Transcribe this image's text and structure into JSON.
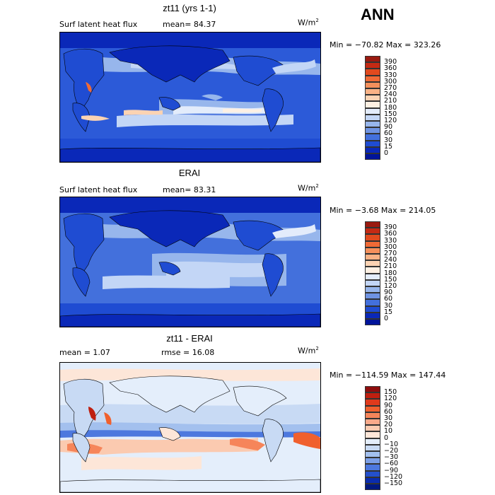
{
  "season": "ANN",
  "panels": [
    {
      "title": "zt11 (yrs 1-1)",
      "left_label": "Surf latent heat flux",
      "mean_text": "mean=  84.37",
      "units": "W/m",
      "units_sup": "2",
      "minmax": "Min = −70.82 Max = 323.26",
      "levels": [
        "390",
        "360",
        "330",
        "300",
        "270",
        "240",
        "210",
        "180",
        "150",
        "120",
        "90",
        "60",
        "30",
        "15",
        "0"
      ],
      "colors": [
        "#9a1a10",
        "#c42a14",
        "#e14a1e",
        "#f06a36",
        "#f5905c",
        "#f9b286",
        "#fbd3b3",
        "#fdf0e3",
        "#e3ecfb",
        "#c3d6f6",
        "#97b6ec",
        "#6f93e2",
        "#4370dc",
        "#1f4cd2",
        "#0a28b8",
        "#00149a"
      ]
    },
    {
      "title": "ERAI",
      "left_label": "Surf latent heat flux",
      "mean_text": "mean=  83.31",
      "units": "W/m",
      "units_sup": "2",
      "minmax": "Min =  −3.68 Max = 214.05",
      "levels": [
        "390",
        "360",
        "330",
        "300",
        "270",
        "240",
        "210",
        "180",
        "150",
        "120",
        "90",
        "60",
        "30",
        "15",
        "0"
      ],
      "colors": [
        "#9a1a10",
        "#c42a14",
        "#e14a1e",
        "#f06a36",
        "#f5905c",
        "#f9b286",
        "#fbd3b3",
        "#fdf0e3",
        "#e3ecfb",
        "#c3d6f6",
        "#97b6ec",
        "#6f93e2",
        "#4370dc",
        "#1f4cd2",
        "#0a28b8",
        "#00149a"
      ]
    },
    {
      "title": "zt11 - ERAI",
      "left_label": "mean =    1.07",
      "mean_text": "rmse =   16.08",
      "units": "W/m",
      "units_sup": "2",
      "minmax": "Min = −114.59 Max = 147.44",
      "levels": [
        "150",
        "120",
        "90",
        "60",
        "30",
        "20",
        "10",
        "0",
        "−10",
        "−20",
        "−30",
        "−60",
        "−90",
        "−120",
        "−150"
      ],
      "colors": [
        "#8e0d0d",
        "#bf1f10",
        "#e03a1c",
        "#f0602e",
        "#f6855a",
        "#f9a98a",
        "#fbcab0",
        "#fde6d8",
        "#e4eefb",
        "#c8daf4",
        "#a3c0ee",
        "#7c9fe6",
        "#4d78de",
        "#2450cc",
        "#0a2cae",
        "#00187f"
      ]
    }
  ]
}
